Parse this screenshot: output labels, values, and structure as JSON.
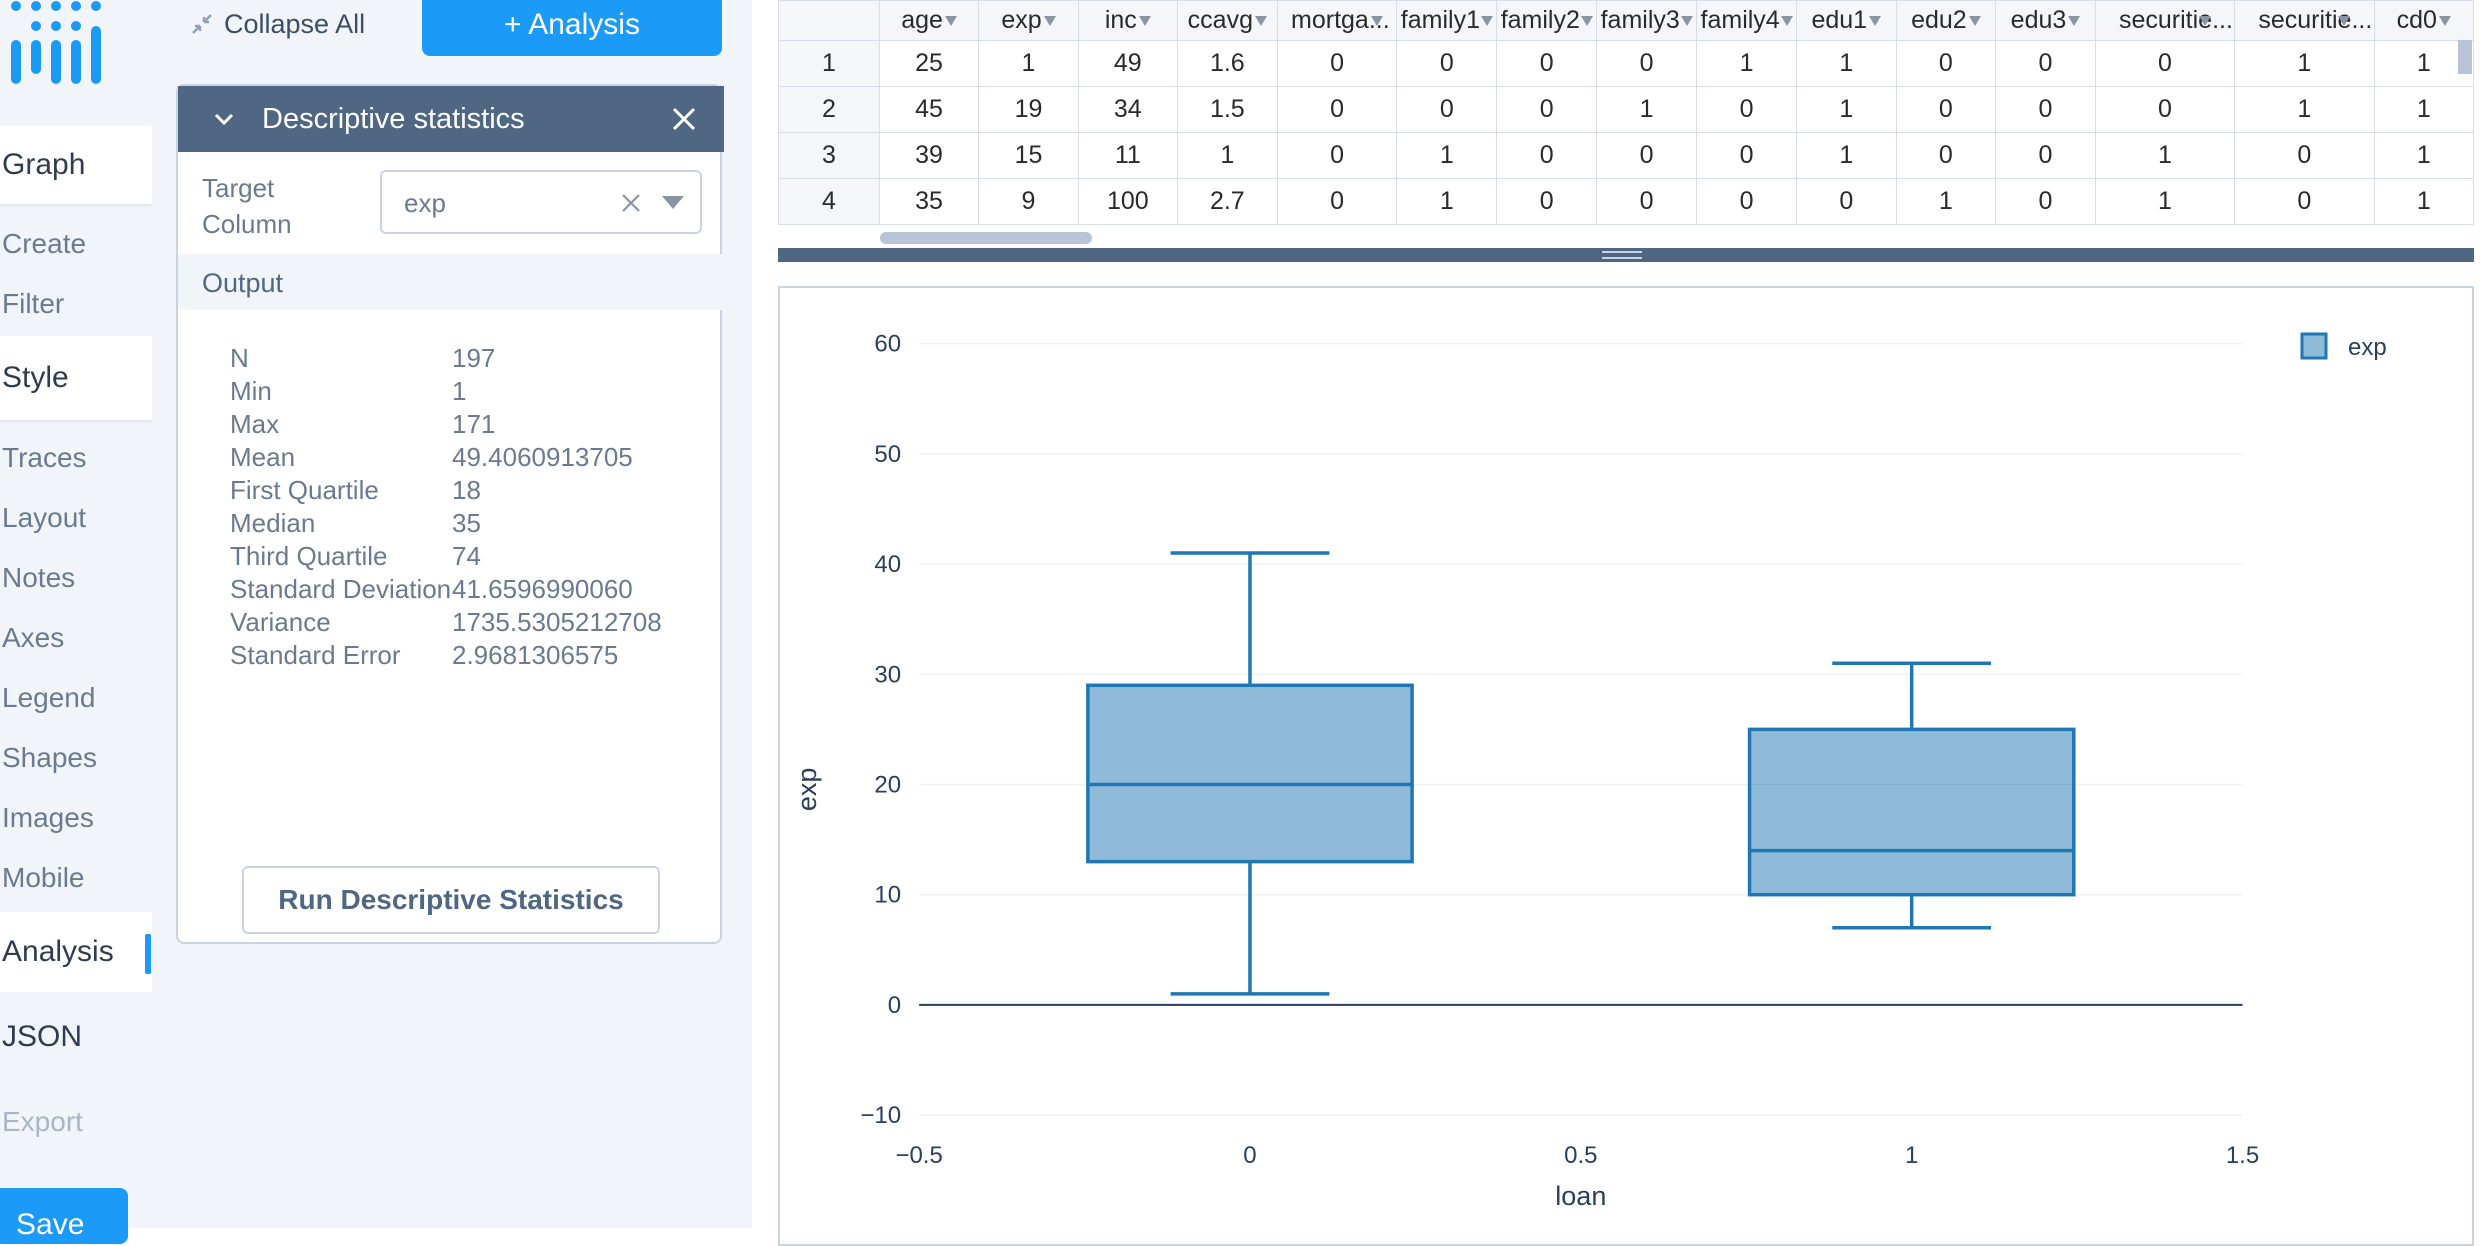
{
  "nav": {
    "graph": "Graph",
    "create": "Create",
    "filter": "Filter",
    "style": "Style",
    "traces": "Traces",
    "layout": "Layout",
    "notes": "Notes",
    "axes": "Axes",
    "legend": "Legend",
    "shapes": "Shapes",
    "images": "Images",
    "mobile": "Mobile",
    "analysis": "Analysis",
    "json": "JSON",
    "export": "Export",
    "save": "Save"
  },
  "panel": {
    "collapse_all": "Collapse All",
    "add_analysis": "+ Analysis",
    "title": "Descriptive statistics",
    "target_label": "Target Column",
    "target_value": "exp",
    "output_title": "Output",
    "stats": [
      {
        "label": "N",
        "value": "197"
      },
      {
        "label": "Min",
        "value": "1"
      },
      {
        "label": "Max",
        "value": "171"
      },
      {
        "label": "Mean",
        "value": "49.4060913705"
      },
      {
        "label": "First Quartile",
        "value": "18"
      },
      {
        "label": "Median",
        "value": "35"
      },
      {
        "label": "Third Quartile",
        "value": "74"
      },
      {
        "label": "Standard Deviation",
        "value": "41.6596990060"
      },
      {
        "label": "Variance",
        "value": "1735.5305212708"
      },
      {
        "label": "Standard Error",
        "value": "2.9681306575"
      }
    ],
    "run_button": "Run Descriptive Statistics"
  },
  "grid": {
    "columns": [
      "age",
      "exp",
      "inc",
      "ccavg",
      "mortga...",
      "family1",
      "family2",
      "family3",
      "family4",
      "edu1",
      "edu2",
      "edu3",
      "securitie...",
      "securitie...",
      "cd0"
    ],
    "rows": [
      {
        "n": "1",
        "cells": [
          "25",
          "1",
          "49",
          "1.6",
          "0",
          "0",
          "0",
          "0",
          "1",
          "1",
          "0",
          "0",
          "0",
          "1",
          "1"
        ]
      },
      {
        "n": "2",
        "cells": [
          "45",
          "19",
          "34",
          "1.5",
          "0",
          "0",
          "0",
          "1",
          "0",
          "1",
          "0",
          "0",
          "0",
          "1",
          "1"
        ]
      },
      {
        "n": "3",
        "cells": [
          "39",
          "15",
          "11",
          "1",
          "0",
          "1",
          "0",
          "0",
          "0",
          "1",
          "0",
          "0",
          "1",
          "0",
          "1"
        ]
      },
      {
        "n": "4",
        "cells": [
          "35",
          "9",
          "100",
          "2.7",
          "0",
          "1",
          "0",
          "0",
          "0",
          "0",
          "1",
          "0",
          "1",
          "0",
          "1"
        ]
      }
    ]
  },
  "chart_data": {
    "type": "box",
    "xlabel": "loan",
    "ylabel": "exp",
    "xlim": [
      -0.5,
      1.5
    ],
    "ylim": [
      -10,
      60
    ],
    "xticks": [
      "−0.5",
      "0",
      "0.5",
      "1",
      "1.5"
    ],
    "yticks": [
      "−10",
      "0",
      "10",
      "20",
      "30",
      "40",
      "50",
      "60"
    ],
    "legend": "top-right",
    "grid": true,
    "color": "#1f77b4",
    "series": [
      {
        "name": "exp",
        "boxes": [
          {
            "x": 0,
            "min": 1,
            "q1": 13,
            "median": 20,
            "q3": 29,
            "max": 41
          },
          {
            "x": 1,
            "min": 7,
            "q1": 10,
            "median": 14,
            "q3": 25,
            "max": 31
          }
        ]
      }
    ]
  }
}
